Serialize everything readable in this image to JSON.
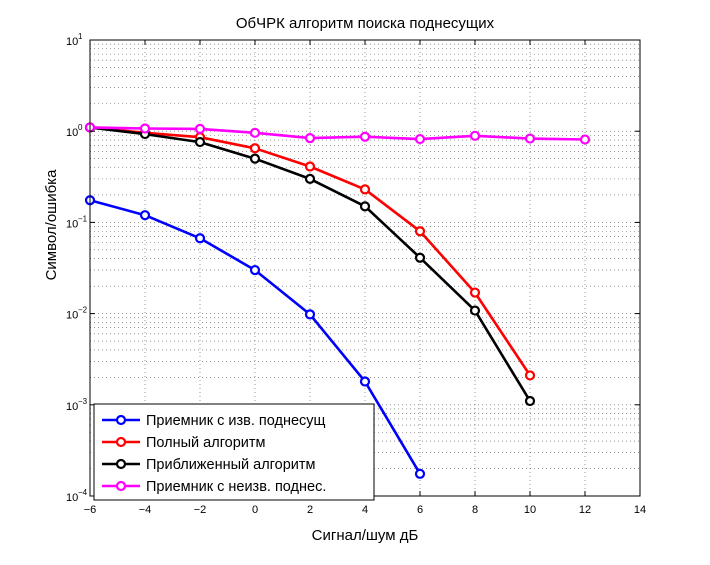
{
  "chart_data": {
    "type": "line",
    "title": "ОбЧРК алгоритм поиска поднесущих",
    "xlabel": "Сигнал/шум дБ",
    "ylabel": "Символ/ошибка",
    "xlim": [
      -6,
      14
    ],
    "ylim": [
      0.0001,
      10
    ],
    "yscale": "log",
    "grid": true,
    "legend_position": "bottom-left",
    "xticks": [
      "−6",
      "−4",
      "−2",
      "0",
      "2",
      "4",
      "6",
      "8",
      "10",
      "12",
      "14"
    ],
    "yticks": [
      {
        "base": "10",
        "exp": "1"
      },
      {
        "base": "10",
        "exp": "0"
      },
      {
        "base": "10",
        "exp": "−1"
      },
      {
        "base": "10",
        "exp": "−2"
      },
      {
        "base": "10",
        "exp": "−3"
      },
      {
        "base": "10",
        "exp": "−4"
      }
    ],
    "series": [
      {
        "name": "Приемник с изв. поднесущ",
        "color": "#0000ff",
        "x": [
          -6,
          -4,
          -2,
          0,
          2,
          4,
          6
        ],
        "y": [
          0.175,
          0.12,
          0.067,
          0.03,
          0.0098,
          0.0018,
          0.000175
        ]
      },
      {
        "name": "Полный алгоритм",
        "color": "#ff0000",
        "x": [
          -6,
          -4,
          -2,
          0,
          2,
          4,
          6,
          8,
          10
        ],
        "y": [
          1.1,
          0.96,
          0.86,
          0.65,
          0.41,
          0.23,
          0.08,
          0.017,
          0.0021
        ]
      },
      {
        "name": "Приближенный алгоритм",
        "color": "#000000",
        "x": [
          -6,
          -4,
          -2,
          0,
          2,
          4,
          6,
          8,
          10
        ],
        "y": [
          1.1,
          0.93,
          0.76,
          0.5,
          0.3,
          0.15,
          0.041,
          0.0108,
          0.0011
        ]
      },
      {
        "name": "Приемник с неизв. поднес.",
        "color": "#ff00ff",
        "x": [
          -6,
          -4,
          -2,
          0,
          2,
          4,
          6,
          8,
          10,
          12
        ],
        "y": [
          1.1,
          1.07,
          1.06,
          0.96,
          0.84,
          0.87,
          0.82,
          0.89,
          0.83,
          0.81
        ]
      }
    ]
  }
}
